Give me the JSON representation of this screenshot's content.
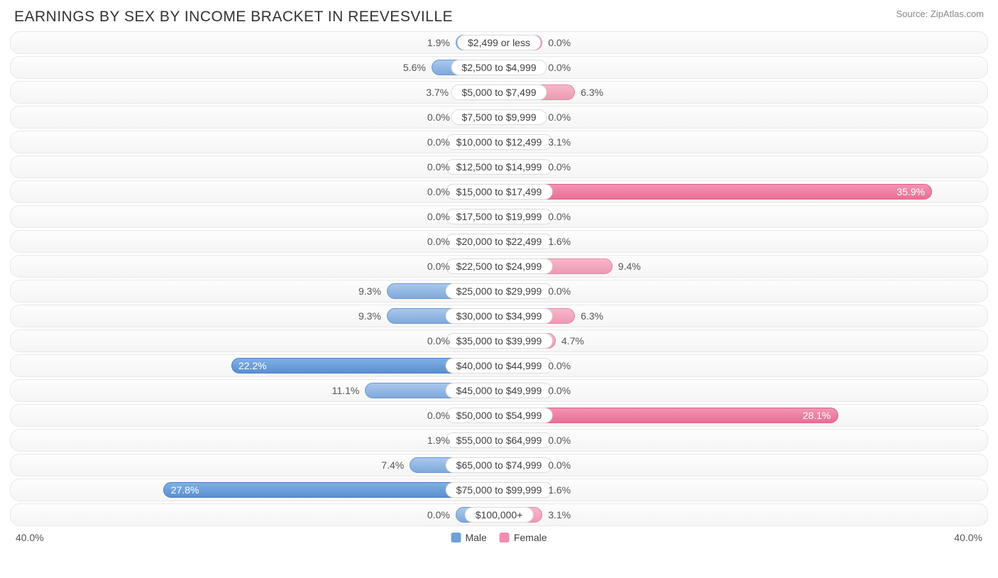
{
  "title": "EARNINGS BY SEX BY INCOME BRACKET IN REEVESVILLE",
  "source": "Source: ZipAtlas.com",
  "axis_max": 40.0,
  "axis_label_left": "40.0%",
  "axis_label_right": "40.0%",
  "min_bar_pct": 9.0,
  "strong_threshold": 20.0,
  "colors": {
    "male_light_top": "#a9c8ec",
    "male_light_bottom": "#7fa9db",
    "male_strong_top": "#7fb0e6",
    "male_strong_bottom": "#5b8fd1",
    "female_light_top": "#f6b8ca",
    "female_light_bottom": "#ef99b3",
    "female_strong_top": "#f294b3",
    "female_strong_bottom": "#ea6f95",
    "row_bg_top": "#fdfdfd",
    "row_bg_bottom": "#f5f5f5",
    "row_border": "#e8e8e8",
    "pill_border": "#dcdcdc",
    "text": "#404040",
    "text_muted": "#555555",
    "title_color": "#333333",
    "source_color": "#888888"
  },
  "typography": {
    "title_fontsize": 21,
    "label_fontsize": 14,
    "source_fontsize": 13
  },
  "legend": [
    {
      "label": "Male",
      "color": "#6f9fd8"
    },
    {
      "label": "Female",
      "color": "#ed8fad"
    }
  ],
  "rows": [
    {
      "bracket": "$2,499 or less",
      "male": 1.9,
      "female": 0.0
    },
    {
      "bracket": "$2,500 to $4,999",
      "male": 5.6,
      "female": 0.0
    },
    {
      "bracket": "$5,000 to $7,499",
      "male": 3.7,
      "female": 6.3
    },
    {
      "bracket": "$7,500 to $9,999",
      "male": 0.0,
      "female": 0.0
    },
    {
      "bracket": "$10,000 to $12,499",
      "male": 0.0,
      "female": 3.1
    },
    {
      "bracket": "$12,500 to $14,999",
      "male": 0.0,
      "female": 0.0
    },
    {
      "bracket": "$15,000 to $17,499",
      "male": 0.0,
      "female": 35.9
    },
    {
      "bracket": "$17,500 to $19,999",
      "male": 0.0,
      "female": 0.0
    },
    {
      "bracket": "$20,000 to $22,499",
      "male": 0.0,
      "female": 1.6
    },
    {
      "bracket": "$22,500 to $24,999",
      "male": 0.0,
      "female": 9.4
    },
    {
      "bracket": "$25,000 to $29,999",
      "male": 9.3,
      "female": 0.0
    },
    {
      "bracket": "$30,000 to $34,999",
      "male": 9.3,
      "female": 6.3
    },
    {
      "bracket": "$35,000 to $39,999",
      "male": 0.0,
      "female": 4.7
    },
    {
      "bracket": "$40,000 to $44,999",
      "male": 22.2,
      "female": 0.0
    },
    {
      "bracket": "$45,000 to $49,999",
      "male": 11.1,
      "female": 0.0
    },
    {
      "bracket": "$50,000 to $54,999",
      "male": 0.0,
      "female": 28.1
    },
    {
      "bracket": "$55,000 to $64,999",
      "male": 1.9,
      "female": 0.0
    },
    {
      "bracket": "$65,000 to $74,999",
      "male": 7.4,
      "female": 0.0
    },
    {
      "bracket": "$75,000 to $99,999",
      "male": 27.8,
      "female": 1.6
    },
    {
      "bracket": "$100,000+",
      "male": 0.0,
      "female": 3.1
    }
  ]
}
